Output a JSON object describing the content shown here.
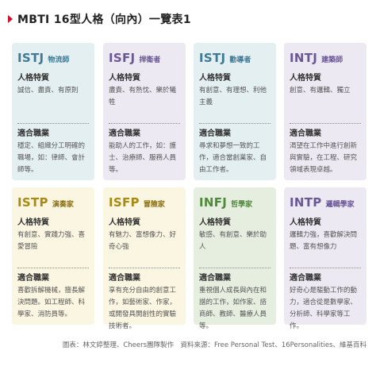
{
  "title": "MBTI 16型人格（向內）一覽表1",
  "cards": [
    {
      "code": "ISTJ",
      "role": "物流師",
      "theme": "c1",
      "traits_label": "人格特質",
      "traits": "誠信、盡責、有原則",
      "careers_label": "適合職業",
      "careers": "穩定、組織分工明確的職場，如：律師、會計師等。"
    },
    {
      "code": "ISFJ",
      "role": "捍衛者",
      "theme": "c2",
      "traits_label": "人格特質",
      "traits": "盡責、有熱忱、樂於犧牲",
      "careers_label": "適合職業",
      "careers": "能助人的工作，如：護士、治療師、服務人員等。"
    },
    {
      "code": "ISTJ",
      "role": "勸導者",
      "theme": "c1",
      "traits_label": "人格特質",
      "traits": "有創意、有理想、利他主義",
      "careers_label": "適合職業",
      "careers": "尋求和夢想一致的工作，適合當創業家、自由工作者。"
    },
    {
      "code": "INTJ",
      "role": "建築師",
      "theme": "c2",
      "traits_label": "人格特質",
      "traits": "創意、有邏輯、獨立",
      "careers_label": "適合職業",
      "careers": "渴望在工作中進行創新與實驗，在工程、研究領域表現卓越。"
    },
    {
      "code": "ISTP",
      "role": "演奏家",
      "theme": "c3",
      "traits_label": "人格特質",
      "traits": "有創意、實踐力強、喜愛冒險",
      "careers_label": "適合職業",
      "careers": "喜歡拆解機械，擅長解決問題。如工程師、科學家、消防員等。"
    },
    {
      "code": "ISFP",
      "role": "冒險家",
      "theme": "c3",
      "traits_label": "人格特質",
      "traits": "有魅力、富想像力、好奇心強",
      "careers_label": "適合職業",
      "careers": "享有充分自由的創意工作，如藝術家、作家，或開發具開創性的實驗技術者。"
    },
    {
      "code": "INFJ",
      "role": "哲學家",
      "theme": "c4",
      "traits_label": "人格特質",
      "traits": "敏感、有創意、樂於助人",
      "careers_label": "適合職業",
      "careers": "重視個人成長與內在和諧的工作，如作家、諮商師、教師、醫療人員等。"
    },
    {
      "code": "INTP",
      "role": "邏輯學家",
      "theme": "c2",
      "traits_label": "人格特質",
      "traits": "邏輯力強，喜歡解決問題、富有想像力",
      "careers_label": "適合職業",
      "careers": "好奇心是驅動工作的動力，適合從是數學家、分析師、科學家等工作。"
    }
  ],
  "footer": "圖表：林文婷整理、Cheers團隊製作　資料來源：Free Personal Test、16Personalities、維基百科"
}
